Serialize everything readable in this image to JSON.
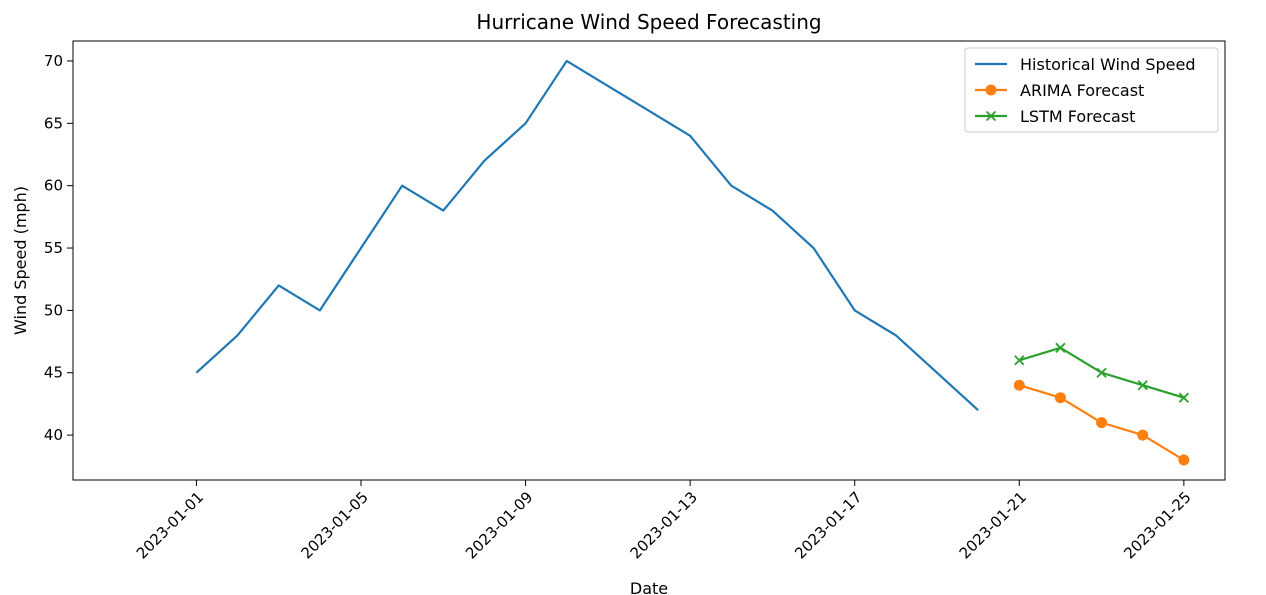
{
  "chart_data": {
    "type": "line",
    "title": "Hurricane Wind Speed Forecasting",
    "xlabel": "Date",
    "ylabel": "Wind Speed (mph)",
    "xlim": [
      "2022-12-29",
      "2023-01-26"
    ],
    "ylim": [
      36.4,
      71.6
    ],
    "x_ticks": [
      "2023-01-01",
      "2023-01-05",
      "2023-01-09",
      "2023-01-13",
      "2023-01-17",
      "2023-01-21",
      "2023-01-25"
    ],
    "y_ticks": [
      40,
      45,
      50,
      55,
      60,
      65,
      70
    ],
    "grid": false,
    "legend_position": "top-right",
    "series": [
      {
        "name": "Historical Wind Speed",
        "color": "#1f77b4",
        "marker": "none",
        "x": [
          "2023-01-01",
          "2023-01-02",
          "2023-01-03",
          "2023-01-04",
          "2023-01-05",
          "2023-01-06",
          "2023-01-07",
          "2023-01-08",
          "2023-01-09",
          "2023-01-10",
          "2023-01-11",
          "2023-01-12",
          "2023-01-13",
          "2023-01-14",
          "2023-01-15",
          "2023-01-16",
          "2023-01-17",
          "2023-01-18",
          "2023-01-19",
          "2023-01-20"
        ],
        "values": [
          45,
          48,
          52,
          50,
          55,
          60,
          58,
          62,
          65,
          70,
          68,
          66,
          64,
          60,
          58,
          55,
          50,
          48,
          45,
          42
        ]
      },
      {
        "name": "ARIMA Forecast",
        "color": "#ff7f0e",
        "marker": "circle",
        "x": [
          "2023-01-21",
          "2023-01-22",
          "2023-01-23",
          "2023-01-24",
          "2023-01-25"
        ],
        "values": [
          44,
          43,
          41,
          40,
          38
        ]
      },
      {
        "name": "LSTM Forecast",
        "color": "#2ca02c",
        "marker": "x",
        "x": [
          "2023-01-21",
          "2023-01-22",
          "2023-01-23",
          "2023-01-24",
          "2023-01-25"
        ],
        "values": [
          46,
          47,
          45,
          44,
          43
        ]
      }
    ]
  }
}
